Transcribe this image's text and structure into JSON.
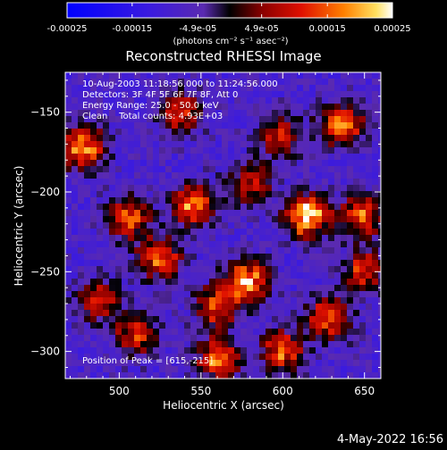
{
  "chart_data": {
    "type": "heatmap",
    "title": "Reconstructed RHESSI Image",
    "xlabel": "Heliocentric X (arcsec)",
    "ylabel": "Heliocentric Y (arcsec)",
    "xlim": [
      467,
      660
    ],
    "ylim": [
      -317,
      -125
    ],
    "x_ticks": [
      500,
      550,
      600,
      650
    ],
    "y_ticks": [
      -150,
      -200,
      -250,
      -300
    ],
    "colorbar": {
      "range": [
        -0.00025,
        0.00025
      ],
      "ticks": [
        "-0.00025",
        "-0.00015",
        "-4.9e-05",
        "4.9e-05",
        "0.00015",
        "0.00025"
      ],
      "unit_label": "(photons cm⁻² s⁻¹ asec⁻²)"
    },
    "annotations": [
      "10-Aug-2003 11:18:56.000 to 11:24:56.000",
      "Detectors: 3F 4F 5F 6F 7F 8F, Att 0",
      "Energy Range: 25.0 - 50.0 keV",
      "Clean    Total counts: 4.93E+03",
      "Position of Peak = [615,-215]"
    ],
    "peak": {
      "x": 615,
      "y": -215
    },
    "sources": [
      {
        "x": 615,
        "y": -215,
        "value": 0.00024
      },
      {
        "x": 578,
        "y": -256,
        "value": 0.0002
      },
      {
        "x": 478,
        "y": -172,
        "value": 0.00018
      },
      {
        "x": 636,
        "y": -158,
        "value": 0.00017
      },
      {
        "x": 545,
        "y": -208,
        "value": 0.00016
      },
      {
        "x": 505,
        "y": -217,
        "value": 0.00015
      },
      {
        "x": 628,
        "y": -280,
        "value": 0.00016
      },
      {
        "x": 648,
        "y": -215,
        "value": 0.00014
      },
      {
        "x": 525,
        "y": -242,
        "value": 0.00014
      },
      {
        "x": 560,
        "y": -305,
        "value": 0.00015
      },
      {
        "x": 600,
        "y": -300,
        "value": 0.00014
      },
      {
        "x": 538,
        "y": -150,
        "value": 0.0001
      },
      {
        "x": 598,
        "y": -165,
        "value": 0.0001
      },
      {
        "x": 487,
        "y": -268,
        "value": 0.00011
      },
      {
        "x": 650,
        "y": -250,
        "value": 0.00012
      },
      {
        "x": 560,
        "y": -272,
        "value": 0.00012
      },
      {
        "x": 510,
        "y": -290,
        "value": 0.0001
      },
      {
        "x": 580,
        "y": -195,
        "value": 0.00011
      }
    ]
  },
  "footer": {
    "timestamp": "4-May-2022 16:56"
  }
}
